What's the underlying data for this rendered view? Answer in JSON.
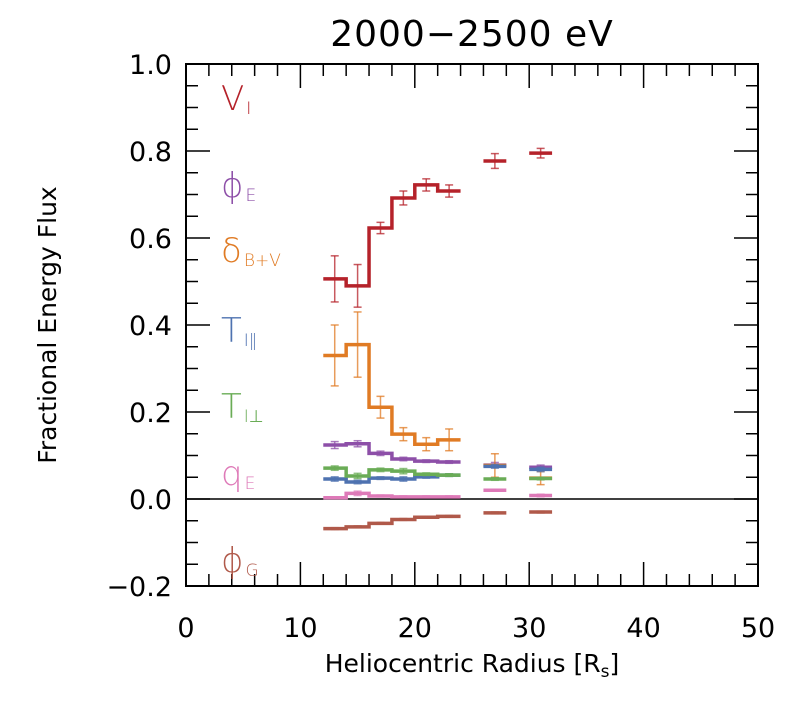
{
  "chart_data": {
    "type": "line",
    "subtype": "step-with-errorbars",
    "title": "2000−2500 eV",
    "xlabel": "Heliocentric Radius [R",
    "xlabel_sub": "s",
    "xlabel_end": "]",
    "ylabel": "Fractional Energy Flux",
    "xlim": [
      0,
      50
    ],
    "ylim": [
      -0.2,
      1.0
    ],
    "x_ticks": [
      0,
      10,
      20,
      30,
      40,
      50
    ],
    "x_tick_labels": [
      "0",
      "10",
      "20",
      "30",
      "40",
      "50"
    ],
    "y_ticks": [
      -0.2,
      0.0,
      0.2,
      0.4,
      0.6,
      0.8,
      1.0
    ],
    "y_tick_labels": [
      "−0.2",
      "0.0",
      "0.2",
      "0.4",
      "0.6",
      "0.8",
      "1.0"
    ],
    "zero_line": true,
    "grid": false,
    "legend_placement": "left-inside",
    "bin_edges_connected": [
      12,
      14,
      16,
      18,
      20,
      22,
      24
    ],
    "bin_edges_isolated": [
      [
        26,
        28
      ],
      [
        30,
        32
      ]
    ],
    "series": [
      {
        "name": "V_I",
        "symbol": "V",
        "sub": "I",
        "color": "#b5222a",
        "values": [
          0.506,
          0.49,
          0.623,
          0.692,
          0.722,
          0.708
        ],
        "errors": [
          0.053,
          0.049,
          0.013,
          0.016,
          0.014,
          0.014
        ],
        "isolated_values": [
          0.777,
          0.795
        ],
        "isolated_errors": [
          0.017,
          0.011
        ]
      },
      {
        "name": "phi_E",
        "symbol": "ϕ",
        "sub": "E",
        "color": "#8d4fa8",
        "values": [
          0.124,
          0.127,
          0.105,
          0.092,
          0.087,
          0.085
        ],
        "errors": [
          0.008,
          0.007,
          0.005,
          0.004,
          0.003,
          0.003
        ],
        "isolated_values": [
          0.078,
          0.073
        ],
        "isolated_errors": [
          0.006,
          0.005
        ]
      },
      {
        "name": "delta_B+V",
        "symbol": "δ",
        "sub": "B+V",
        "color": "#e07b24",
        "values": [
          0.33,
          0.355,
          0.211,
          0.149,
          0.126,
          0.136
        ],
        "errors": [
          0.07,
          0.075,
          0.025,
          0.015,
          0.015,
          0.025
        ],
        "isolated_values": [
          0.077,
          0.048
        ],
        "isolated_errors": [
          0.027,
          0.015
        ]
      },
      {
        "name": "T_I||",
        "symbol": "T",
        "sub": "I‖",
        "color": "#4e72b0",
        "values": [
          0.046,
          0.039,
          0.048,
          0.046,
          0.051,
          0.055
        ],
        "errors": [
          0.005,
          0.004,
          0.003,
          0.005,
          0.003,
          0.003
        ],
        "isolated_values": [
          0.075,
          0.068
        ],
        "isolated_errors": [
          0.004,
          0.005
        ]
      },
      {
        "name": "T_I_perp",
        "symbol": "T",
        "sub": "I⊥",
        "color": "#6aac56",
        "values": [
          0.071,
          0.053,
          0.067,
          0.064,
          0.057,
          0.055
        ],
        "errors": [
          0.005,
          0.006,
          0.004,
          0.006,
          0.003,
          0.003
        ],
        "isolated_values": [
          0.046,
          0.047
        ],
        "isolated_errors": [
          0.003,
          0.003
        ]
      },
      {
        "name": "q_E",
        "symbol": "q",
        "sub": "E",
        "color": "#de7ab8",
        "values": [
          0.003,
          0.013,
          0.007,
          0.005,
          0.005,
          0.005
        ],
        "errors": [
          0.002,
          0.005,
          0.002,
          0.002,
          0.002,
          0.002
        ],
        "isolated_values": [
          0.02,
          0.008
        ],
        "isolated_errors": [
          0.002,
          0.003
        ]
      },
      {
        "name": "phi_G",
        "symbol": "ϕ",
        "sub": "G",
        "color": "#b0594a",
        "values": [
          -0.068,
          -0.064,
          -0.056,
          -0.047,
          -0.042,
          -0.04
        ],
        "errors": [
          0.002,
          0.002,
          0.002,
          0.002,
          0.002,
          0.002
        ],
        "isolated_values": [
          -0.032,
          -0.03
        ],
        "isolated_errors": [
          0.002,
          0.002
        ]
      }
    ],
    "legend_order": [
      "V_I",
      "phi_E",
      "delta_B+V",
      "T_I||",
      "T_I_perp",
      "q_E",
      "phi_G"
    ]
  }
}
